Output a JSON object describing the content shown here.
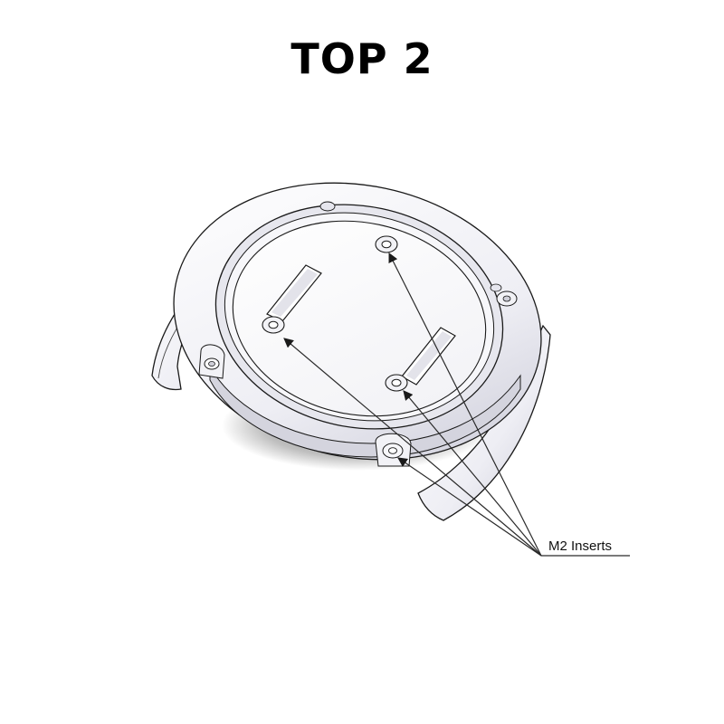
{
  "page": {
    "title": "TOP 2",
    "background": "#ffffff"
  },
  "diagram": {
    "part": "top-cover-cad-render",
    "callout": {
      "label": "M2 Inserts",
      "count": 4
    },
    "colors": {
      "part_fill": "#f4f4f8",
      "part_shadow": "#c8c8d4",
      "outline": "#1a1a1a",
      "leader": "#2a2a2a"
    }
  }
}
